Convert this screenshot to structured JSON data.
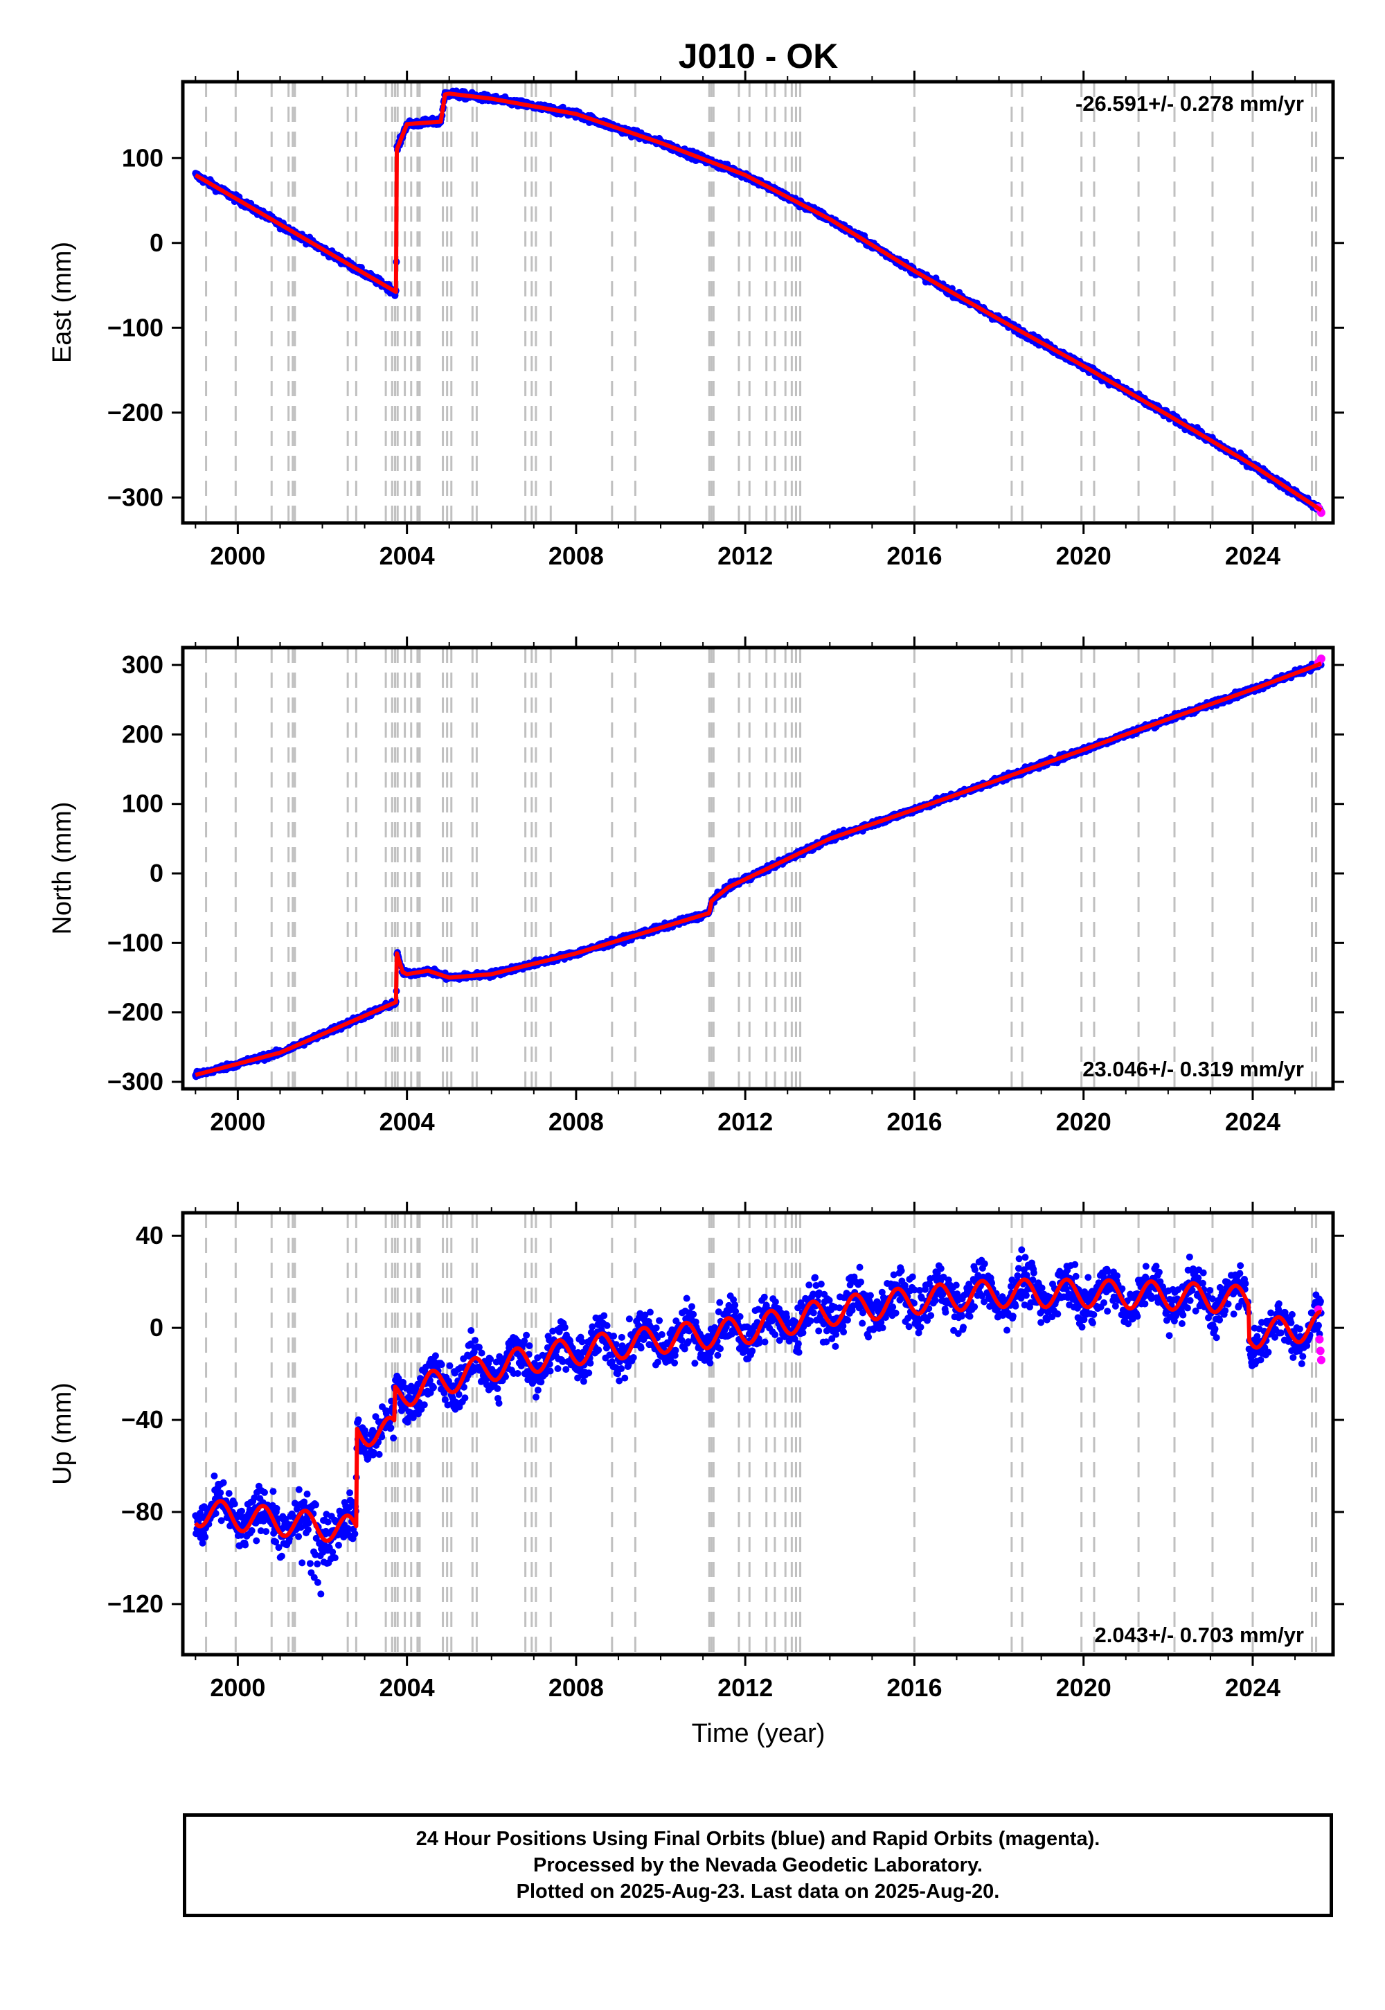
{
  "title": "J010 - OK",
  "xlabel": "Time (year)",
  "x_ticks": [
    2000,
    2004,
    2008,
    2012,
    2016,
    2020,
    2024
  ],
  "colors": {
    "final_orbits": "#0000ff",
    "rapid_orbits": "#ff00ff",
    "model": "#ff0000",
    "event_lines": "#c0c0c0"
  },
  "event_years": [
    1999.25,
    1999.95,
    2000.8,
    2001.2,
    2001.3,
    2001.35,
    2002.6,
    2002.8,
    2003.5,
    2003.65,
    2003.72,
    2003.78,
    2003.95,
    2004.1,
    2004.25,
    2004.3,
    2004.85,
    2004.95,
    2005.05,
    2005.55,
    2005.65,
    2006.8,
    2006.95,
    2007.05,
    2007.4,
    2008.85,
    2009.4,
    2011.15,
    2011.2,
    2011.25,
    2011.85,
    2012.1,
    2012.5,
    2012.7,
    2012.95,
    2013.1,
    2013.2,
    2013.3,
    2016.0,
    2018.3,
    2018.55,
    2019.95,
    2020.25,
    2021.3,
    2022.15,
    2023.05,
    2024.0,
    2025.4,
    2025.5
  ],
  "chart_data": [
    {
      "type": "scatter",
      "ylabel": "East (mm)",
      "rate_label": "-26.591+/- 0.278 mm/yr",
      "rate_position": "top-right",
      "xlim": [
        1998.7,
        2025.9
      ],
      "ylim": [
        -330,
        190
      ],
      "y_ticks": [
        100,
        0,
        -100,
        -200,
        -300
      ],
      "model": {
        "x": [
          1999.0,
          2003.75,
          2003.76,
          2004.0,
          2004.8,
          2004.9,
          2005.0,
          2006.0,
          2008.0,
          2010.0,
          2012.0,
          2014.0,
          2016.0,
          2018.0,
          2020.0,
          2022.0,
          2024.0,
          2025.62
        ],
        "y": [
          80,
          -58,
          110,
          140,
          143,
          175,
          176,
          170,
          152,
          118,
          80,
          28,
          -33,
          -90,
          -145,
          -203,
          -262,
          -315
        ]
      },
      "scatter_noise": 3,
      "rapid": {
        "x": [
          2025.55,
          2025.62
        ],
        "y": [
          -312,
          -318
        ]
      }
    },
    {
      "type": "scatter",
      "ylabel": "North (mm)",
      "rate_label": "23.046+/- 0.319 mm/yr",
      "rate_position": "bottom-right",
      "xlim": [
        1998.7,
        2025.9
      ],
      "ylim": [
        -310,
        325
      ],
      "y_ticks": [
        300,
        200,
        100,
        0,
        -100,
        -200,
        -300
      ],
      "model": {
        "x": [
          1999.0,
          2001.0,
          2003.75,
          2003.76,
          2003.9,
          2004.0,
          2004.5,
          2005.0,
          2006.0,
          2008.0,
          2011.15,
          2011.2,
          2011.6,
          2014.0,
          2016.0,
          2018.0,
          2020.0,
          2022.0,
          2024.0,
          2025.62
        ],
        "y": [
          -290,
          -258,
          -185,
          -115,
          -142,
          -145,
          -140,
          -150,
          -145,
          -115,
          -57,
          -40,
          -20,
          50,
          92,
          135,
          178,
          222,
          265,
          302
        ]
      },
      "scatter_noise": 3,
      "rapid": {
        "x": [
          2025.55,
          2025.62
        ],
        "y": [
          303,
          309
        ]
      }
    },
    {
      "type": "scatter",
      "ylabel": "Up (mm)",
      "rate_label": "2.043+/- 0.703 mm/yr",
      "rate_position": "bottom-right",
      "xlim": [
        1998.7,
        2025.9
      ],
      "ylim": [
        -142,
        50
      ],
      "y_ticks": [
        40,
        0,
        -40,
        -80,
        -120
      ],
      "model": {
        "x": [
          1999.0,
          2002.8,
          2002.81,
          2003.7,
          2003.71,
          2004.0,
          2006.0,
          2008.0,
          2010.0,
          2012.0,
          2014.0,
          2016.0,
          2018.0,
          2020.0,
          2022.0,
          2023.9,
          2023.91,
          2025.62
        ],
        "y": [
          -80,
          -88,
          -45,
          -45,
          -30,
          -28,
          -17,
          -10,
          -5,
          -1,
          7,
          12,
          15,
          15,
          14,
          12,
          -3,
          1
        ]
      },
      "seasonal_amplitude": 6,
      "scatter_noise": 7,
      "rapid": {
        "x": [
          2025.55,
          2025.58,
          2025.6,
          2025.62
        ],
        "y": [
          8,
          -5,
          -10,
          -14
        ]
      }
    }
  ],
  "footer": {
    "line1": "24 Hour Positions Using Final Orbits (blue) and Rapid Orbits (magenta).",
    "line2": "Processed by the Nevada Geodetic Laboratory.",
    "line3": "Plotted on 2025-Aug-23. Last data on 2025-Aug-20."
  }
}
